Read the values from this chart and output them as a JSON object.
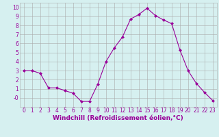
{
  "hours": [
    0,
    1,
    2,
    3,
    4,
    5,
    6,
    7,
    8,
    9,
    10,
    11,
    12,
    13,
    14,
    15,
    16,
    17,
    18,
    19,
    20,
    21,
    22,
    23
  ],
  "values": [
    3.0,
    3.0,
    2.7,
    1.1,
    1.1,
    0.8,
    0.5,
    -0.4,
    -0.4,
    1.5,
    4.0,
    5.5,
    6.7,
    8.7,
    9.2,
    9.9,
    9.1,
    8.6,
    8.2,
    5.3,
    3.0,
    1.6,
    0.6,
    -0.3
  ],
  "line_color": "#990099",
  "marker": "D",
  "marker_size": 2,
  "bg_color": "#d6f0f0",
  "grid_color": "#aaaaaa",
  "xlabel": "Windchill (Refroidissement éolien,°C)",
  "xlabel_color": "#990099",
  "xlabel_fontsize": 6.5,
  "tick_color": "#990099",
  "tick_fontsize": 5.5,
  "ylim": [
    -1,
    10.5
  ],
  "xlim": [
    -0.5,
    23.5
  ],
  "yticks": [
    0,
    1,
    2,
    3,
    4,
    5,
    6,
    7,
    8,
    9,
    10
  ],
  "xticks": [
    0,
    1,
    2,
    3,
    4,
    5,
    6,
    7,
    8,
    9,
    10,
    11,
    12,
    13,
    14,
    15,
    16,
    17,
    18,
    19,
    20,
    21,
    22,
    23
  ]
}
